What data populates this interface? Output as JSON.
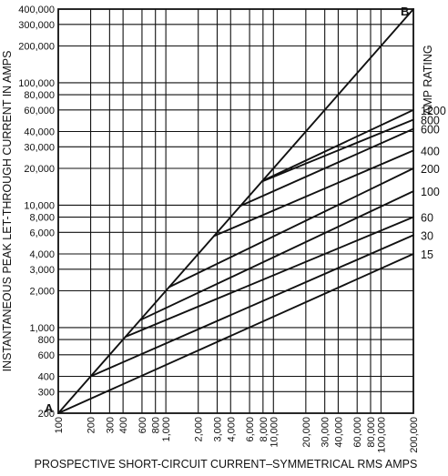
{
  "chart_data": {
    "type": "line",
    "xlabel": "PROSPECTIVE SHORT-CIRCUIT CURRENT–SYMMETRICAL RMS AMPS",
    "ylabel": "INSTANTANEOUS PEAK LET-THROUGH CURRENT IN AMPS",
    "x_scale": "log",
    "y_scale": "log",
    "xlim": [
      100,
      200000
    ],
    "ylim": [
      200,
      400000
    ],
    "grid": true,
    "x_ticks": [
      100,
      200,
      300,
      400,
      600,
      800,
      1000,
      2000,
      3000,
      4000,
      6000,
      8000,
      10000,
      20000,
      30000,
      40000,
      60000,
      80000,
      100000,
      200000
    ],
    "x_tick_labels": [
      "100",
      "200",
      "300",
      "400",
      "600",
      "800",
      "1,000",
      "2,000",
      "3,000",
      "4,000",
      "6,000",
      "8,000",
      "10,000",
      "20,000",
      "30,000",
      "40,000",
      "60,000",
      "80,000",
      "100,000",
      "200,000"
    ],
    "y_ticks": [
      200,
      300,
      400,
      600,
      800,
      1000,
      2000,
      3000,
      4000,
      6000,
      8000,
      10000,
      20000,
      30000,
      40000,
      60000,
      80000,
      100000,
      200000,
      300000,
      400000
    ],
    "y_tick_labels": [
      "200",
      "300",
      "400",
      "600",
      "800",
      "1,000",
      "2,000",
      "3,000",
      "4,000",
      "6,000",
      "8,000",
      "10,000",
      "20,000",
      "30,000",
      "40,000",
      "60,000",
      "80,000",
      "100,000",
      "200,000",
      "300,000",
      "400,000"
    ],
    "legend_title": "AMP RATING",
    "point_labels": [
      {
        "text": "A",
        "x": 100,
        "y": 200
      },
      {
        "text": "B",
        "x": 200000,
        "y": 400000
      }
    ],
    "series": [
      {
        "name": "A-B",
        "x": [
          100,
          200000
        ],
        "y": [
          200,
          400000
        ]
      },
      {
        "name": "1200",
        "x": [
          7900,
          200000
        ],
        "y": [
          15800,
          60000
        ]
      },
      {
        "name": "800",
        "x": [
          7800,
          200000
        ],
        "y": [
          15600,
          50000
        ]
      },
      {
        "name": "600",
        "x": [
          4950,
          200000
        ],
        "y": [
          9900,
          42000
        ]
      },
      {
        "name": "400",
        "x": [
          2800,
          200000
        ],
        "y": [
          5600,
          28000
        ]
      },
      {
        "name": "200",
        "x": [
          1070,
          200000
        ],
        "y": [
          2140,
          20000
        ]
      },
      {
        "name": "100",
        "x": [
          575,
          200000
        ],
        "y": [
          1150,
          13000
        ]
      },
      {
        "name": "60",
        "x": [
          420,
          200000
        ],
        "y": [
          840,
          8000
        ]
      },
      {
        "name": "30",
        "x": [
          200,
          200000
        ],
        "y": [
          400,
          5700
        ]
      },
      {
        "name": "15",
        "x": [
          100,
          200000
        ],
        "y": [
          200,
          4000
        ]
      }
    ]
  }
}
